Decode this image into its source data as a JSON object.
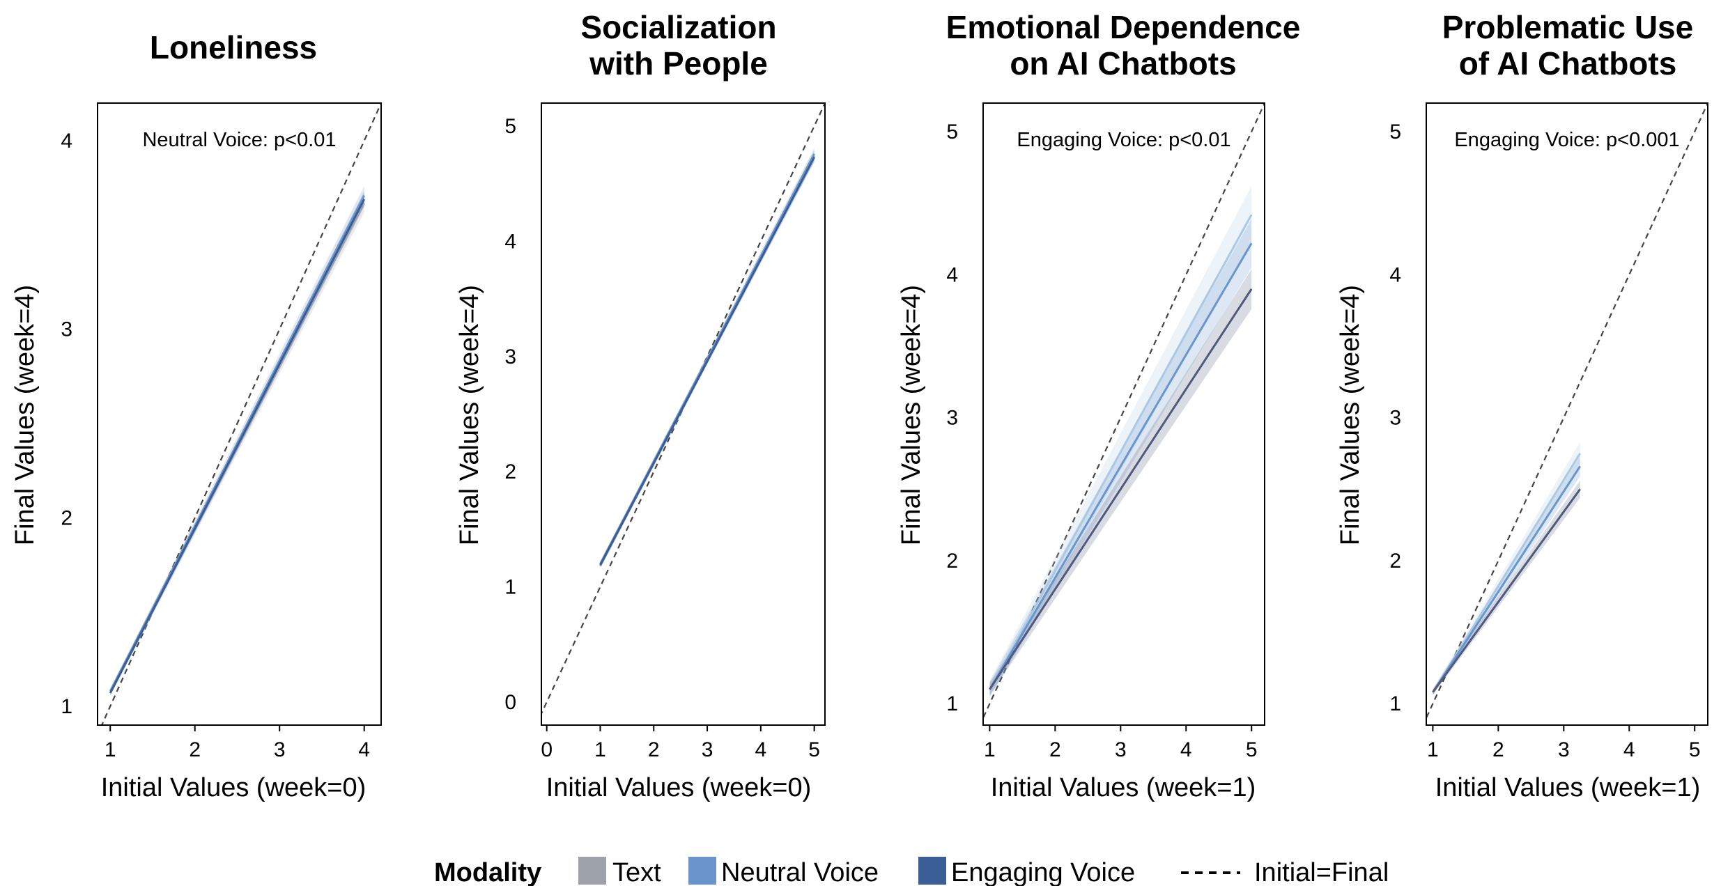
{
  "legend": {
    "title": "Modality",
    "items": [
      {
        "label": "Text",
        "color": "#9ea3ab"
      },
      {
        "label": "Neutral Voice",
        "color": "#6a95cc"
      },
      {
        "label": "Engaging Voice",
        "color": "#3b5d96"
      }
    ],
    "reference_label": "Initial=Final"
  },
  "chart_data": [
    {
      "type": "line",
      "title": [
        "Loneliness"
      ],
      "xlabel": "Initial Values (week=0)",
      "ylabel": "Final Values (week=4)",
      "xlim": [
        0.85,
        4.2
      ],
      "ylim": [
        0.9,
        4.2
      ],
      "xticks": [
        1,
        2,
        3,
        4
      ],
      "yticks": [
        1,
        2,
        3,
        4
      ],
      "annotation": "Neutral Voice: p<0.01",
      "reference_line": "y=x",
      "series": [
        {
          "name": "Text",
          "color": "#9ea3ab",
          "x": [
            1,
            4
          ],
          "y": [
            1.07,
            3.67
          ],
          "ci": 0.05
        },
        {
          "name": "Neutral Voice",
          "color": "#6a95cc",
          "x": [
            1,
            4
          ],
          "y": [
            1.08,
            3.71
          ],
          "ci": 0.05
        },
        {
          "name": "Engaging Voice",
          "color": "#3b5d96",
          "x": [
            1,
            4
          ],
          "y": [
            1.07,
            3.69
          ],
          "ci": 0.04
        }
      ]
    },
    {
      "type": "line",
      "title": [
        "Socialization",
        "with People"
      ],
      "xlabel": "Initial Values (week=0)",
      "ylabel": "Final Values (week=4)",
      "xlim": [
        -0.1,
        5.2
      ],
      "ylim": [
        -0.2,
        5.2
      ],
      "xticks": [
        0,
        1,
        2,
        3,
        4,
        5
      ],
      "yticks": [
        0,
        1,
        2,
        3,
        4,
        5
      ],
      "annotation": "",
      "reference_line": "y=x",
      "series": [
        {
          "name": "Text",
          "color": "#9ea3ab",
          "x": [
            1,
            5
          ],
          "y": [
            1.18,
            4.74
          ],
          "ci": 0.05
        },
        {
          "name": "Neutral Voice",
          "color": "#6a95cc",
          "x": [
            1,
            5
          ],
          "y": [
            1.2,
            4.76
          ],
          "ci": 0.05
        },
        {
          "name": "Engaging Voice",
          "color": "#3b5d96",
          "x": [
            1,
            5
          ],
          "y": [
            1.19,
            4.73
          ],
          "ci": 0.04
        }
      ]
    },
    {
      "type": "line",
      "title": [
        "Emotional Dependence",
        "on AI Chatbots"
      ],
      "xlabel": "Initial Values (week=1)",
      "ylabel": "Final Values (week=4)",
      "xlim": [
        0.9,
        5.2
      ],
      "ylim": [
        0.85,
        5.2
      ],
      "xticks": [
        1,
        2,
        3,
        4,
        5
      ],
      "yticks": [
        1,
        2,
        3,
        4,
        5
      ],
      "annotation": "Engaging Voice: p<0.01",
      "reference_line": "y=x",
      "series": [
        {
          "name": "Text",
          "color": "#a9c9e4",
          "x": [
            1,
            5
          ],
          "y": [
            1.1,
            4.42
          ],
          "ci": 0.2
        },
        {
          "name": "Neutral Voice",
          "color": "#6a95cc",
          "x": [
            1,
            5
          ],
          "y": [
            1.1,
            4.22
          ],
          "ci": 0.17
        },
        {
          "name": "Engaging Voice",
          "color": "#50597c",
          "x": [
            1,
            5
          ],
          "y": [
            1.1,
            3.9
          ],
          "ci": 0.14
        }
      ]
    },
    {
      "type": "line",
      "title": [
        "Problematic Use",
        "of AI Chatbots"
      ],
      "xlabel": "Initial Values (week=1)",
      "ylabel": "Final Values (week=4)",
      "xlim": [
        0.9,
        5.2
      ],
      "ylim": [
        0.85,
        5.2
      ],
      "xticks": [
        1,
        2,
        3,
        4,
        5
      ],
      "yticks": [
        1,
        2,
        3,
        4,
        5
      ],
      "annotation": "Engaging Voice: p<0.001",
      "reference_line": "y=x",
      "series": [
        {
          "name": "Text",
          "color": "#a9c9e4",
          "x": [
            1,
            3.25
          ],
          "y": [
            1.08,
            2.75
          ],
          "ci": 0.08
        },
        {
          "name": "Neutral Voice",
          "color": "#6a95cc",
          "x": [
            1,
            3.25
          ],
          "y": [
            1.08,
            2.66
          ],
          "ci": 0.07
        },
        {
          "name": "Engaging Voice",
          "color": "#50597c",
          "x": [
            1,
            3.25
          ],
          "y": [
            1.08,
            2.5
          ],
          "ci": 0.06
        }
      ]
    }
  ]
}
